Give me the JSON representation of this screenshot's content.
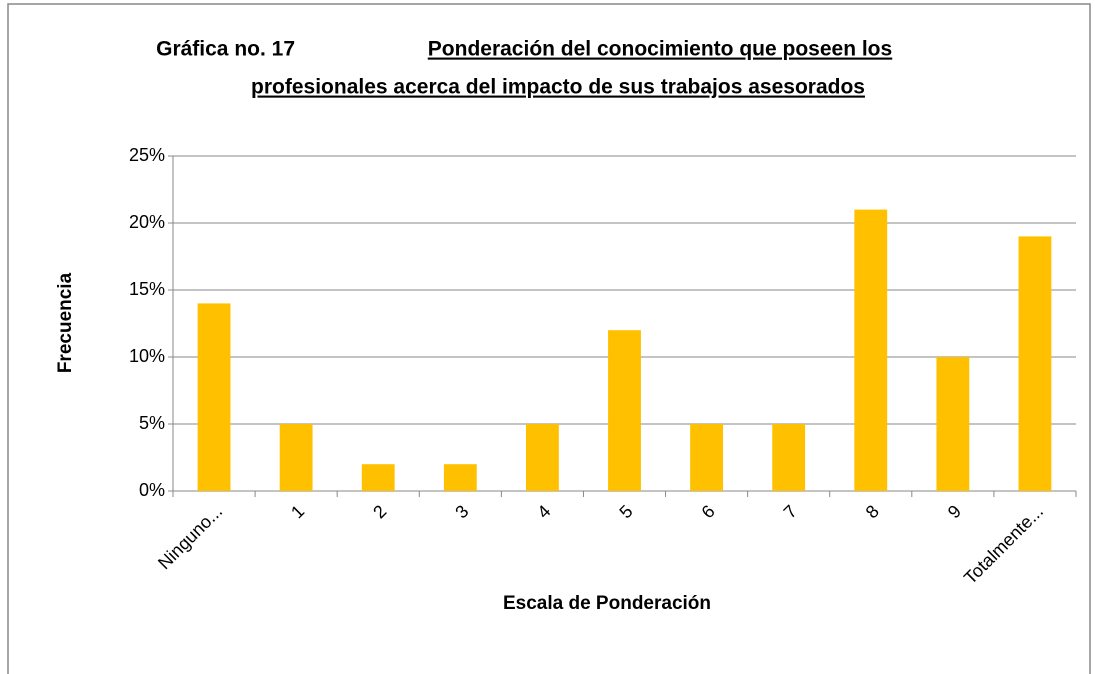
{
  "chart_data": {
    "type": "bar",
    "title_prefix": "Gráfica no. 17",
    "title": [
      "Ponderación del conocimiento que poseen los",
      "profesionales acerca del impacto de sus trabajos asesorados"
    ],
    "x_label": "Escala de Ponderación",
    "y_label": "Frecuencia",
    "categories": [
      "Ninguno...",
      "1",
      "2",
      "3",
      "4",
      "5",
      "6",
      "7",
      "8",
      "9",
      "Totalmente..."
    ],
    "values": [
      14,
      5,
      2,
      2,
      5,
      12,
      5,
      5,
      21,
      10,
      19
    ],
    "color": "#ffc000",
    "ylim": [
      0,
      25
    ],
    "yticks": [
      {
        "value": 0,
        "label": "0%"
      },
      {
        "value": 5,
        "label": "5%"
      },
      {
        "value": 10,
        "label": "10%"
      },
      {
        "value": 15,
        "label": "15%"
      },
      {
        "value": 20,
        "label": "20%"
      },
      {
        "value": 25,
        "label": "25%"
      }
    ],
    "grid": true
  }
}
